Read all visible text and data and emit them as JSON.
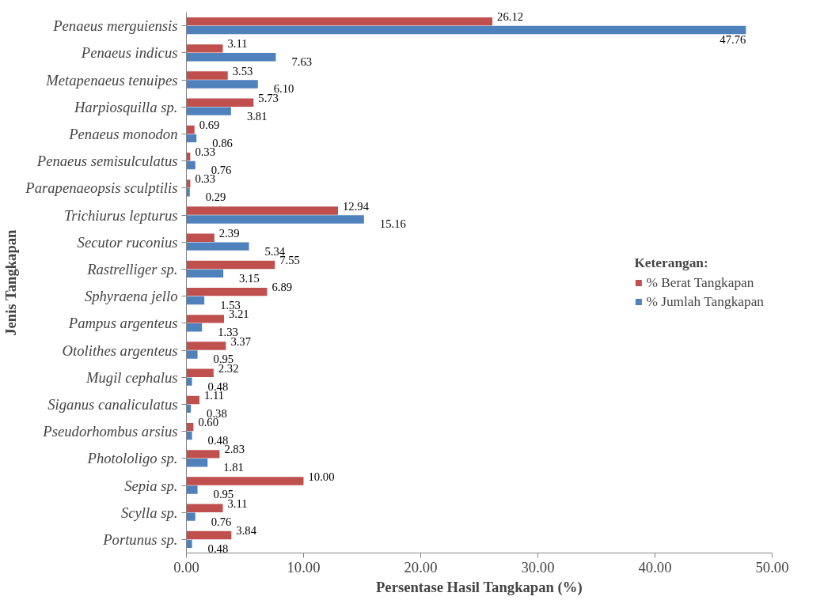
{
  "chart_data": {
    "type": "bar",
    "orientation": "horizontal",
    "xlabel": "Persentase Hasil Tangkapan (%)",
    "ylabel": "Jenis Tangkapan",
    "legend_title": "Keterangan:",
    "legend": "right",
    "grid": false,
    "categories": [
      "Penaeus merguiensis",
      "Penaeus indicus",
      "Metapenaeus tenuipes",
      "Harpiosquilla sp.",
      "Penaeus monodon",
      "Penaeus semisulculatus",
      "Parapenaeopsis sculptilis",
      "Trichiurus lepturus",
      "Secutor ruconius",
      "Rastrelliger sp.",
      "Sphyraena jello",
      "Pampus argenteus",
      "Otolithes argenteus",
      "Mugil cephalus",
      "Siganus canaliculatus",
      "Pseudorhombus arsius",
      "Photololigo sp.",
      "Sepia sp.",
      "Scylla sp.",
      "Portunus sp."
    ],
    "xlim": [
      0,
      50
    ],
    "xticks": [
      {
        "value": 0,
        "label": "0.00"
      },
      {
        "value": 10,
        "label": "10.00"
      },
      {
        "value": 20,
        "label": "20.00"
      },
      {
        "value": 30,
        "label": "30.00"
      },
      {
        "value": 40,
        "label": "40.00"
      },
      {
        "value": 50,
        "label": "50.00"
      }
    ],
    "series": [
      {
        "name": "% Berat Tangkapan",
        "color": "#c0504d",
        "values": [
          26.12,
          3.11,
          3.53,
          5.73,
          0.69,
          0.33,
          0.33,
          12.94,
          2.39,
          7.55,
          6.89,
          3.21,
          3.37,
          2.32,
          1.11,
          0.6,
          2.83,
          10.0,
          3.11,
          3.84
        ],
        "value_labels": [
          "26.12",
          "3.11",
          "3.53",
          "5.73",
          "0.69",
          "0.33",
          "0.33",
          "12.94",
          "2.39",
          "7.55",
          "6.89",
          "3.21",
          "3.37",
          "2.32",
          "1.11",
          "0.60",
          "2.83",
          "10.00",
          "3.11",
          "3.84"
        ]
      },
      {
        "name": "% Jumlah Tangkapan",
        "color": "#4f81bd",
        "values": [
          47.76,
          7.63,
          6.1,
          3.81,
          0.86,
          0.76,
          0.29,
          15.16,
          5.34,
          3.15,
          1.53,
          1.33,
          0.95,
          0.48,
          0.38,
          0.48,
          1.81,
          0.95,
          0.76,
          0.48
        ],
        "value_labels": [
          "47.76",
          "7.63",
          "6.10",
          "3.81",
          "0.86",
          "0.76",
          "0.29",
          "15.16",
          "5.34",
          "3.15",
          "1.53",
          "1.33",
          "0.95",
          "0.48",
          "0.38",
          "0.48",
          "1.81",
          "0.95",
          "0.76",
          "0.48"
        ]
      }
    ]
  }
}
